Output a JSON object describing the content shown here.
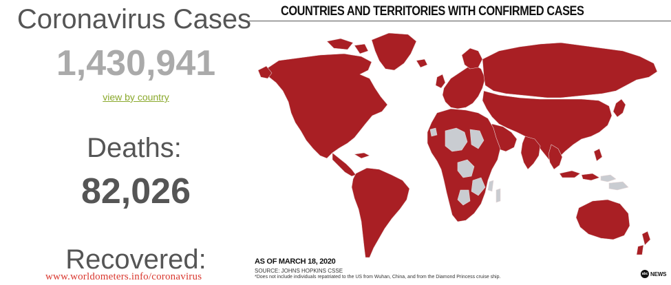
{
  "stats": {
    "cases_title": "Coronavirus Cases",
    "cases_count": "1,430,941",
    "view_link": "view by country",
    "deaths_title": "Deaths:",
    "deaths_count": "82,026",
    "recovered_title": "Recovered:"
  },
  "watermark": "www.worldometers.info/coronavirus",
  "map": {
    "header": "COUNTRIES AND TERRITORIES WITH CONFIRMED CASES",
    "as_of": "AS OF MARCH 18, 2020",
    "source": "SOURCE: JOHNS HOPKINS CSSE",
    "footnote": "*Does not include individuals repatriated to the US from Wuhan, China, and from the Diamond Princess cruise ship.",
    "logo_mark": "abc",
    "logo_text": "NEWS",
    "colors": {
      "confirmed": "#a91f24",
      "no_cases": "#c9ccd1",
      "border": "#e8d6d6"
    }
  }
}
